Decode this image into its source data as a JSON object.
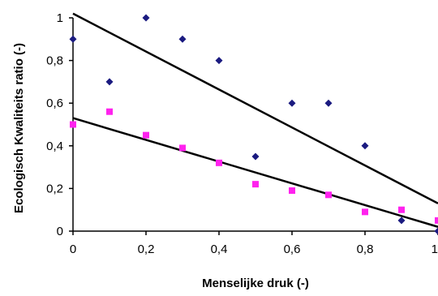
{
  "chart_data": {
    "type": "scatter",
    "xlabel": "Menselijke druk (-)",
    "ylabel": "Ecologisch Kwaliteits ratio (-)",
    "xlim": [
      0,
      1
    ],
    "ylim": [
      0,
      1
    ],
    "x_ticks": [
      0,
      0.2,
      0.4,
      0.6,
      0.8,
      1
    ],
    "y_ticks": [
      0,
      0.2,
      0.4,
      0.6,
      0.8,
      1
    ],
    "x_tick_labels": [
      "0",
      "0,2",
      "0,4",
      "0,6",
      "0,8",
      "1"
    ],
    "y_tick_labels": [
      "0",
      "0,2",
      "0,4",
      "0,6",
      "0,8",
      "1"
    ],
    "grid": false,
    "legend": "none",
    "series": [
      {
        "marker": "diamond",
        "color": "#1a1a80",
        "points": [
          [
            0,
            0.9
          ],
          [
            0.1,
            0.7
          ],
          [
            0.2,
            1.0
          ],
          [
            0.3,
            0.9
          ],
          [
            0.4,
            0.8
          ],
          [
            0.5,
            0.35
          ],
          [
            0.6,
            0.6
          ],
          [
            0.7,
            0.6
          ],
          [
            0.8,
            0.4
          ],
          [
            0.9,
            0.05
          ],
          [
            1.0,
            0.0
          ]
        ]
      },
      {
        "marker": "square",
        "color": "#ff22ee",
        "points": [
          [
            0,
            0.5
          ],
          [
            0.1,
            0.56
          ],
          [
            0.2,
            0.45
          ],
          [
            0.3,
            0.39
          ],
          [
            0.4,
            0.32
          ],
          [
            0.5,
            0.22
          ],
          [
            0.6,
            0.19
          ],
          [
            0.7,
            0.17
          ],
          [
            0.8,
            0.09
          ],
          [
            0.9,
            0.1
          ],
          [
            1.0,
            0.05
          ]
        ]
      }
    ],
    "trendlines": [
      {
        "x": [
          0,
          1
        ],
        "y": [
          1.02,
          0.13
        ],
        "color": "#000000"
      },
      {
        "x": [
          0,
          1
        ],
        "y": [
          0.53,
          0.02
        ],
        "color": "#000000"
      }
    ]
  }
}
